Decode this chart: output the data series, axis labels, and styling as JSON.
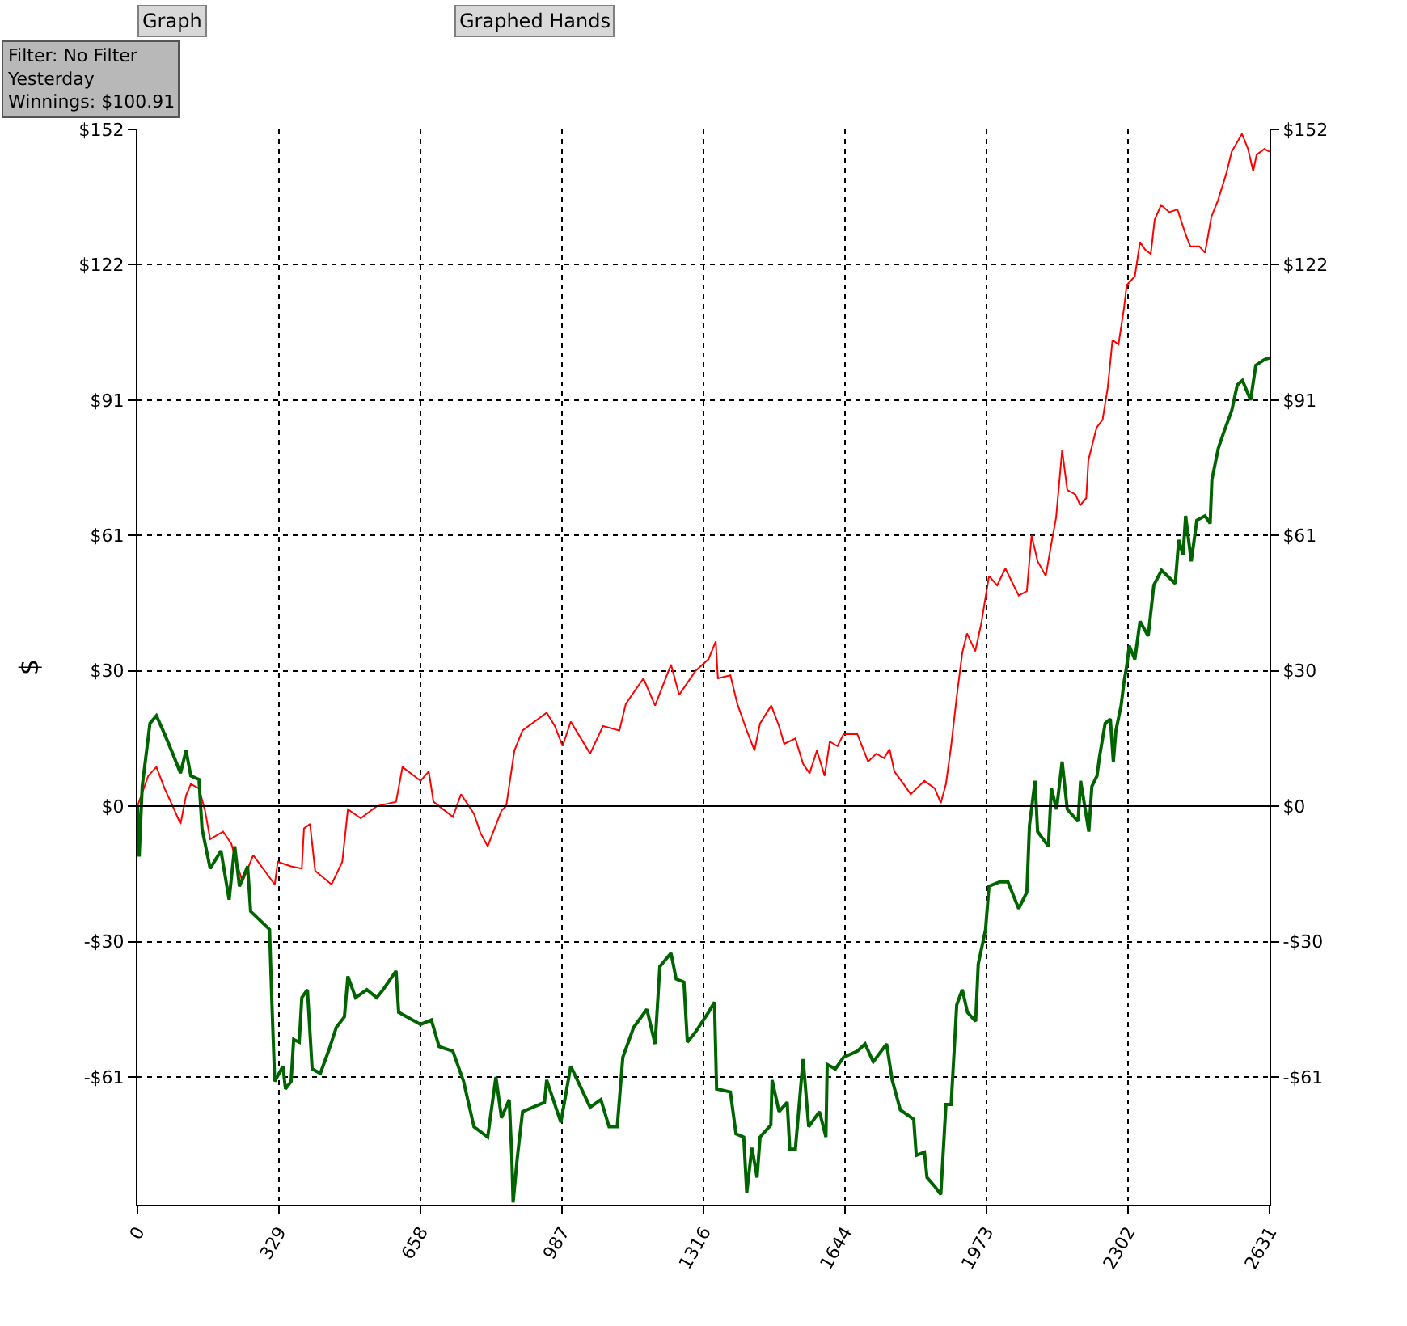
{
  "chart_data": {
    "type": "line",
    "ylabel": "$",
    "annotations": [
      "Graph",
      "Graphed Hands",
      "Filter: No Filter\nYesterday\nWinnings: $100.91"
    ],
    "xlim": [
      0,
      2631
    ],
    "xticks": [
      0,
      329,
      658,
      987,
      1316,
      1644,
      1973,
      2302,
      2631
    ],
    "ylim": [
      -89.5,
      152
    ],
    "yticks": [
      {
        "value": -60.8,
        "label": "-$61"
      },
      {
        "value": -30.4,
        "label": "-$30"
      },
      {
        "value": 0,
        "label": "$0"
      },
      {
        "value": 30.4,
        "label": "$30"
      },
      {
        "value": 60.8,
        "label": "$61"
      },
      {
        "value": 91.2,
        "label": "$91"
      },
      {
        "value": 121.6,
        "label": "$122"
      },
      {
        "value": 152,
        "label": "$152"
      }
    ],
    "y2lim": [
      -89.5,
      152
    ],
    "y2ticks": [
      {
        "value": -60.8,
        "label": "-$61"
      },
      {
        "value": -30.4,
        "label": "-$30"
      },
      {
        "value": 0,
        "label": "$0"
      },
      {
        "value": 30.4,
        "label": "$30"
      },
      {
        "value": 60.8,
        "label": "$61"
      },
      {
        "value": 91.2,
        "label": "$91"
      },
      {
        "value": 121.6,
        "label": "$122"
      },
      {
        "value": 152,
        "label": "$152"
      }
    ],
    "grid": true,
    "marker": "none",
    "line_style": "solid",
    "ref_lines": [
      {
        "axis": "y",
        "value": 0,
        "color": "#000000",
        "line_style": "solid"
      }
    ],
    "series": [
      {
        "color": "#ff0000",
        "x": [
          0,
          25,
          44,
          63,
          82,
          100,
          113,
          124,
          143,
          157,
          169,
          199,
          218,
          244,
          269,
          319,
          326,
          357,
          382,
          387,
          401,
          413,
          451,
          476,
          489,
          519,
          556,
          601,
          616,
          658,
          677,
          688,
          733,
          752,
          782,
          797,
          814,
          846,
          857,
          876,
          895,
          951,
          970,
          988,
          1007,
          1052,
          1082,
          1120,
          1135,
          1176,
          1203,
          1240,
          1259,
          1297,
          1327,
          1344,
          1349,
          1378,
          1394,
          1416,
          1434,
          1447,
          1473,
          1491,
          1503,
          1529,
          1547,
          1562,
          1579,
          1597,
          1609,
          1627,
          1641,
          1673,
          1698,
          1717,
          1735,
          1748,
          1759,
          1785,
          1797,
          1829,
          1853,
          1867,
          1879,
          1891,
          1904,
          1917,
          1928,
          1947,
          1961,
          1979,
          1998,
          2017,
          2048,
          2067,
          2078,
          2092,
          2111,
          2124,
          2135,
          2149,
          2161,
          2180,
          2191,
          2205,
          2210,
          2229,
          2243,
          2255,
          2266,
          2280,
          2293,
          2299,
          2318,
          2330,
          2342,
          2355,
          2364,
          2379,
          2398,
          2417,
          2436,
          2447,
          2468,
          2481,
          2496,
          2511,
          2530,
          2543,
          2567,
          2581,
          2593,
          2601,
          2619,
          2631
        ],
        "values": [
          0,
          6.8,
          8.8,
          4,
          0,
          -4,
          2.4,
          5,
          4,
          -1,
          -7.4,
          -5.7,
          -8.4,
          -17,
          -11,
          -17.6,
          -12.5,
          -13.5,
          -14,
          -5,
          -4,
          -14.5,
          -17.6,
          -12.5,
          -0.7,
          -2.7,
          0,
          1,
          8.8,
          5.7,
          7.8,
          1,
          -2.4,
          2.7,
          -1.7,
          -6,
          -9,
          -1,
          0,
          12.5,
          17,
          21,
          18,
          13.5,
          19,
          11.8,
          18,
          17,
          23,
          28.7,
          22.6,
          31.8,
          25,
          30.4,
          33,
          37,
          28.7,
          29.4,
          23,
          17,
          12.5,
          18.6,
          22.6,
          18,
          14,
          15.2,
          9.5,
          7.4,
          12.5,
          6.8,
          14.5,
          13.5,
          16.2,
          16.2,
          10,
          11.8,
          10.8,
          12.8,
          7.8,
          4.4,
          2.7,
          5.7,
          4,
          0.7,
          5,
          13.5,
          24.6,
          34.5,
          38.8,
          34.8,
          41,
          51.7,
          49.6,
          53.4,
          47.3,
          48.3,
          60.8,
          55,
          51.7,
          59,
          64.8,
          80,
          71,
          70,
          67.6,
          69.2,
          77.7,
          85,
          86.8,
          94,
          104.7,
          103.7,
          112,
          117,
          119,
          126.7,
          125,
          124,
          131.7,
          135,
          133.4,
          134,
          128.4,
          125.7,
          125.7,
          124.3,
          132.4,
          136,
          141.9,
          147,
          151,
          147.6,
          142.6,
          146.3,
          147.6,
          147
        ]
      },
      {
        "color": "#006400",
        "x": [
          0,
          4,
          11,
          29,
          44,
          63,
          82,
          100,
          113,
          124,
          143,
          150,
          169,
          194,
          213,
          226,
          237,
          256,
          263,
          307,
          312,
          319,
          338,
          344,
          357,
          363,
          376,
          382,
          395,
          406,
          425,
          444,
          462,
          481,
          489,
          507,
          533,
          556,
          571,
          601,
          607,
          658,
          683,
          701,
          733,
          758,
          782,
          814,
          833,
          846,
          864,
          870,
          873,
          883,
          895,
          946,
          951,
          984,
          1007,
          1052,
          1077,
          1096,
          1115,
          1128,
          1153,
          1184,
          1203,
          1214,
          1240,
          1252,
          1270,
          1278,
          1297,
          1327,
          1341,
          1346,
          1378,
          1391,
          1409,
          1416,
          1428,
          1440,
          1447,
          1472,
          1475,
          1491,
          1510,
          1516,
          1529,
          1547,
          1560,
          1585,
          1600,
          1603,
          1622,
          1641,
          1673,
          1691,
          1710,
          1741,
          1754,
          1773,
          1804,
          1810,
          1829,
          1835,
          1854,
          1867,
          1879,
          1891,
          1898,
          1904,
          1917,
          1929,
          1948,
          1954,
          1971,
          1979,
          2004,
          2023,
          2048,
          2067,
          2073,
          2086,
          2092,
          2117,
          2124,
          2136,
          2149,
          2161,
          2186,
          2192,
          2211,
          2218,
          2230,
          2236,
          2249,
          2261,
          2268,
          2274,
          2286,
          2293,
          2299,
          2305,
          2318,
          2330,
          2349,
          2362,
          2380,
          2412,
          2420,
          2430,
          2436,
          2449,
          2462,
          2481,
          2493,
          2497,
          2512,
          2524,
          2543,
          2556,
          2568,
          2587,
          2599,
          2619,
          2631
        ],
        "values": [
          0,
          -11.3,
          4.4,
          18.6,
          20.3,
          16.2,
          11.8,
          7.4,
          12.5,
          6.8,
          6,
          -5,
          -14,
          -10,
          -21,
          -9,
          -18,
          -13.5,
          -23.6,
          -27.7,
          -43,
          -61.8,
          -58.4,
          -63.5,
          -61.8,
          -52.4,
          -53,
          -43,
          -41.2,
          -59,
          -60,
          -55,
          -49.7,
          -47.3,
          -38.2,
          -43,
          -41.2,
          -43,
          -41.2,
          -37,
          -46.3,
          -49,
          -48,
          -54,
          -55,
          -61.8,
          -72,
          -74.3,
          -60.8,
          -70,
          -65.9,
          -78.7,
          -89,
          -78.7,
          -68.6,
          -66.5,
          -61.5,
          -71,
          -58.4,
          -67.6,
          -65.9,
          -72,
          -72,
          -56.4,
          -49.7,
          -45.6,
          -53.4,
          -36,
          -33,
          -38.8,
          -39.5,
          -53,
          -50.7,
          -46.3,
          -44,
          -63.5,
          -64.2,
          -73.6,
          -74.3,
          -86.8,
          -76.7,
          -83.4,
          -74.3,
          -71.6,
          -61.5,
          -68.6,
          -66.5,
          -77,
          -77,
          -56.8,
          -72,
          -68.6,
          -74.3,
          -58,
          -59,
          -56.4,
          -55,
          -53.4,
          -57.4,
          -53.4,
          -61.5,
          -68.2,
          -70.3,
          -78.4,
          -77.7,
          -83.4,
          -85.5,
          -87.2,
          -67,
          -67,
          -55,
          -44.6,
          -41.2,
          -46.3,
          -48.3,
          -35.5,
          -27.7,
          -18,
          -17,
          -17,
          -23,
          -19.3,
          -4.4,
          5.7,
          -5.7,
          -9,
          4,
          -0.7,
          10,
          -0.7,
          -3.4,
          5.7,
          -5.7,
          4.4,
          6.8,
          11.2,
          18.6,
          19.6,
          10,
          17,
          22.6,
          28,
          31.4,
          36,
          33,
          41.5,
          38.2,
          49.6,
          53,
          50,
          59.8,
          56.4,
          65.2,
          55,
          64.2,
          65.2,
          63.5,
          73.3,
          80.4,
          83.8,
          88.8,
          94.6,
          95.6,
          91.2,
          99,
          100.3,
          100.7
        ]
      }
    ]
  }
}
